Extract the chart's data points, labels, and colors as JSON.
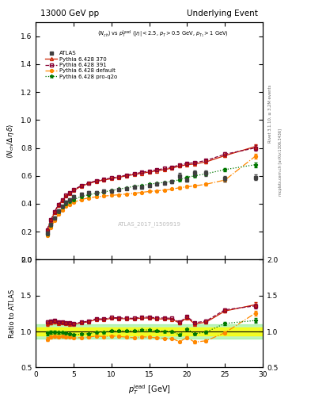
{
  "title_left": "13000 GeV pp",
  "title_right": "Underlying Event",
  "watermark": "ATLAS_2017_I1509919",
  "atlas_x": [
    1.5,
    2.0,
    2.5,
    3.0,
    3.5,
    4.0,
    4.5,
    5.0,
    6.0,
    7.0,
    8.0,
    9.0,
    10.0,
    11.0,
    12.0,
    13.0,
    14.0,
    15.0,
    16.0,
    17.0,
    18.0,
    19.0,
    20.0,
    21.0,
    22.5,
    25.0,
    29.0
  ],
  "atlas_y": [
    0.19,
    0.25,
    0.3,
    0.35,
    0.38,
    0.41,
    0.43,
    0.45,
    0.47,
    0.48,
    0.48,
    0.49,
    0.49,
    0.5,
    0.51,
    0.52,
    0.52,
    0.53,
    0.54,
    0.55,
    0.56,
    0.6,
    0.57,
    0.62,
    0.62,
    0.58,
    0.59
  ],
  "atlas_yerr": [
    0.01,
    0.01,
    0.01,
    0.01,
    0.01,
    0.01,
    0.01,
    0.01,
    0.01,
    0.01,
    0.01,
    0.01,
    0.01,
    0.01,
    0.01,
    0.01,
    0.01,
    0.01,
    0.01,
    0.01,
    0.01,
    0.02,
    0.01,
    0.02,
    0.02,
    0.02,
    0.02
  ],
  "p370_x": [
    1.5,
    2.0,
    2.5,
    3.0,
    3.5,
    4.0,
    4.5,
    5.0,
    6.0,
    7.0,
    8.0,
    9.0,
    10.0,
    11.0,
    12.0,
    13.0,
    14.0,
    15.0,
    16.0,
    17.0,
    18.0,
    19.0,
    20.0,
    21.0,
    22.5,
    25.0,
    29.0
  ],
  "p370_y": [
    0.21,
    0.28,
    0.34,
    0.39,
    0.425,
    0.455,
    0.475,
    0.495,
    0.525,
    0.545,
    0.56,
    0.57,
    0.58,
    0.59,
    0.6,
    0.61,
    0.618,
    0.628,
    0.635,
    0.645,
    0.655,
    0.67,
    0.68,
    0.685,
    0.7,
    0.745,
    0.81
  ],
  "p370_yerr": [
    0.005,
    0.005,
    0.005,
    0.005,
    0.005,
    0.005,
    0.005,
    0.005,
    0.005,
    0.005,
    0.005,
    0.005,
    0.005,
    0.005,
    0.005,
    0.005,
    0.005,
    0.005,
    0.005,
    0.005,
    0.005,
    0.008,
    0.008,
    0.008,
    0.01,
    0.012,
    0.018
  ],
  "p391_x": [
    1.5,
    2.0,
    2.5,
    3.0,
    3.5,
    4.0,
    4.5,
    5.0,
    6.0,
    7.0,
    8.0,
    9.0,
    10.0,
    11.0,
    12.0,
    13.0,
    14.0,
    15.0,
    16.0,
    17.0,
    18.0,
    19.0,
    20.0,
    21.0,
    22.5,
    25.0,
    29.0
  ],
  "p391_y": [
    0.215,
    0.285,
    0.345,
    0.395,
    0.43,
    0.46,
    0.48,
    0.5,
    0.53,
    0.55,
    0.565,
    0.575,
    0.585,
    0.595,
    0.605,
    0.615,
    0.625,
    0.635,
    0.643,
    0.653,
    0.663,
    0.678,
    0.688,
    0.695,
    0.71,
    0.755,
    0.8
  ],
  "p391_yerr": [
    0.005,
    0.005,
    0.005,
    0.005,
    0.005,
    0.005,
    0.005,
    0.005,
    0.005,
    0.005,
    0.005,
    0.005,
    0.005,
    0.005,
    0.005,
    0.005,
    0.005,
    0.005,
    0.005,
    0.005,
    0.005,
    0.008,
    0.008,
    0.008,
    0.01,
    0.012,
    0.018
  ],
  "pdef_x": [
    1.5,
    2.0,
    2.5,
    3.0,
    3.5,
    4.0,
    4.5,
    5.0,
    6.0,
    7.0,
    8.0,
    9.0,
    10.0,
    11.0,
    12.0,
    13.0,
    14.0,
    15.0,
    16.0,
    17.0,
    18.0,
    19.0,
    20.0,
    21.0,
    22.5,
    25.0,
    29.0
  ],
  "pdef_y": [
    0.17,
    0.23,
    0.28,
    0.325,
    0.355,
    0.38,
    0.395,
    0.41,
    0.43,
    0.442,
    0.45,
    0.455,
    0.46,
    0.465,
    0.47,
    0.475,
    0.482,
    0.488,
    0.493,
    0.498,
    0.505,
    0.515,
    0.522,
    0.528,
    0.54,
    0.57,
    0.74
  ],
  "pdef_yerr": [
    0.005,
    0.005,
    0.005,
    0.005,
    0.005,
    0.005,
    0.005,
    0.005,
    0.005,
    0.005,
    0.005,
    0.005,
    0.005,
    0.005,
    0.005,
    0.005,
    0.005,
    0.005,
    0.005,
    0.005,
    0.005,
    0.008,
    0.008,
    0.008,
    0.01,
    0.012,
    0.018
  ],
  "pq2o_x": [
    1.5,
    2.0,
    2.5,
    3.0,
    3.5,
    4.0,
    4.5,
    5.0,
    6.0,
    7.0,
    8.0,
    9.0,
    10.0,
    11.0,
    12.0,
    13.0,
    14.0,
    15.0,
    16.0,
    17.0,
    18.0,
    19.0,
    20.0,
    21.0,
    22.5,
    25.0,
    29.0
  ],
  "pq2o_y": [
    0.185,
    0.248,
    0.298,
    0.345,
    0.375,
    0.4,
    0.415,
    0.43,
    0.452,
    0.465,
    0.475,
    0.485,
    0.495,
    0.505,
    0.515,
    0.525,
    0.532,
    0.54,
    0.547,
    0.553,
    0.56,
    0.572,
    0.59,
    0.6,
    0.615,
    0.645,
    0.68
  ],
  "pq2o_yerr": [
    0.005,
    0.005,
    0.005,
    0.005,
    0.005,
    0.005,
    0.005,
    0.005,
    0.005,
    0.005,
    0.005,
    0.005,
    0.005,
    0.005,
    0.005,
    0.005,
    0.005,
    0.005,
    0.005,
    0.005,
    0.005,
    0.008,
    0.008,
    0.008,
    0.01,
    0.012,
    0.018
  ],
  "color_atlas": "#404040",
  "color_370": "#cc2200",
  "color_391": "#880033",
  "color_default": "#ff8800",
  "color_q2o": "#007700",
  "ylim_main": [
    0.0,
    1.7
  ],
  "ylim_ratio": [
    0.5,
    2.0
  ],
  "xlim": [
    0,
    30
  ]
}
